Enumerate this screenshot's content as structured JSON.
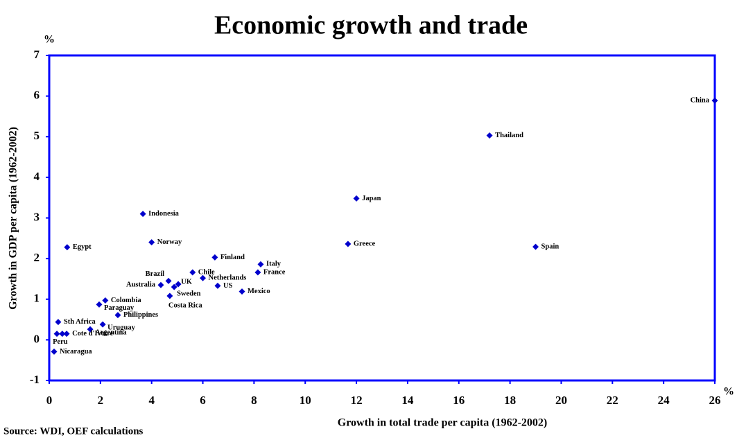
{
  "chart_data": {
    "type": "scatter",
    "title": "Economic growth and trade",
    "x_label": "Growth in total trade per capita (1962-2002)",
    "y_label": "Growth in GDP per capita (1962-2002)",
    "x_unit": "%",
    "y_unit": "%",
    "source": "Source: WDI, OEF calculations",
    "color": "#0000cc",
    "frame_color": "#0000ff",
    "categories": [
      "China",
      "Thailand",
      "Japan",
      "Greece",
      "Spain",
      "Indonesia",
      "Norway",
      "Egypt",
      "Finland",
      "Italy",
      "France",
      "Chile",
      "Netherlands",
      "Brazil",
      "UK",
      "Australia",
      "Sweden",
      "US",
      "Mexico",
      "Costa Rica",
      "Colombia",
      "Paraguay",
      "Philippines",
      "Sth Africa",
      "Uruguay",
      "Argentina",
      "Cote d'Ivoire",
      null,
      "Peru",
      "Nicaragua"
    ],
    "x": [
      26,
      17.2,
      12.0,
      11.67,
      19.0,
      3.66,
      4.0,
      0.7,
      6.47,
      8.26,
      8.15,
      5.6,
      6.0,
      4.66,
      4.88,
      4.36,
      5.04,
      6.58,
      7.53,
      4.71,
      2.19,
      1.95,
      2.68,
      0.35,
      2.09,
      1.6,
      0.68,
      0.51,
      0.3,
      0.19
    ],
    "values": [
      5.89,
      5.03,
      3.48,
      2.36,
      2.29,
      3.1,
      2.4,
      2.28,
      2.03,
      1.86,
      1.66,
      1.66,
      1.52,
      1.45,
      1.3,
      1.35,
      1.37,
      1.33,
      1.19,
      1.08,
      0.97,
      0.87,
      0.61,
      0.44,
      0.38,
      0.26,
      0.15,
      0.15,
      0.15,
      -0.29
    ],
    "xlim": [
      0,
      26
    ],
    "xticks": [
      0,
      2,
      4,
      6,
      8,
      10,
      12,
      14,
      16,
      18,
      20,
      22,
      24,
      26
    ],
    "ylim": [
      -1,
      7
    ],
    "yticks": [
      -1,
      0,
      1,
      2,
      3,
      4,
      5,
      6,
      7
    ]
  }
}
